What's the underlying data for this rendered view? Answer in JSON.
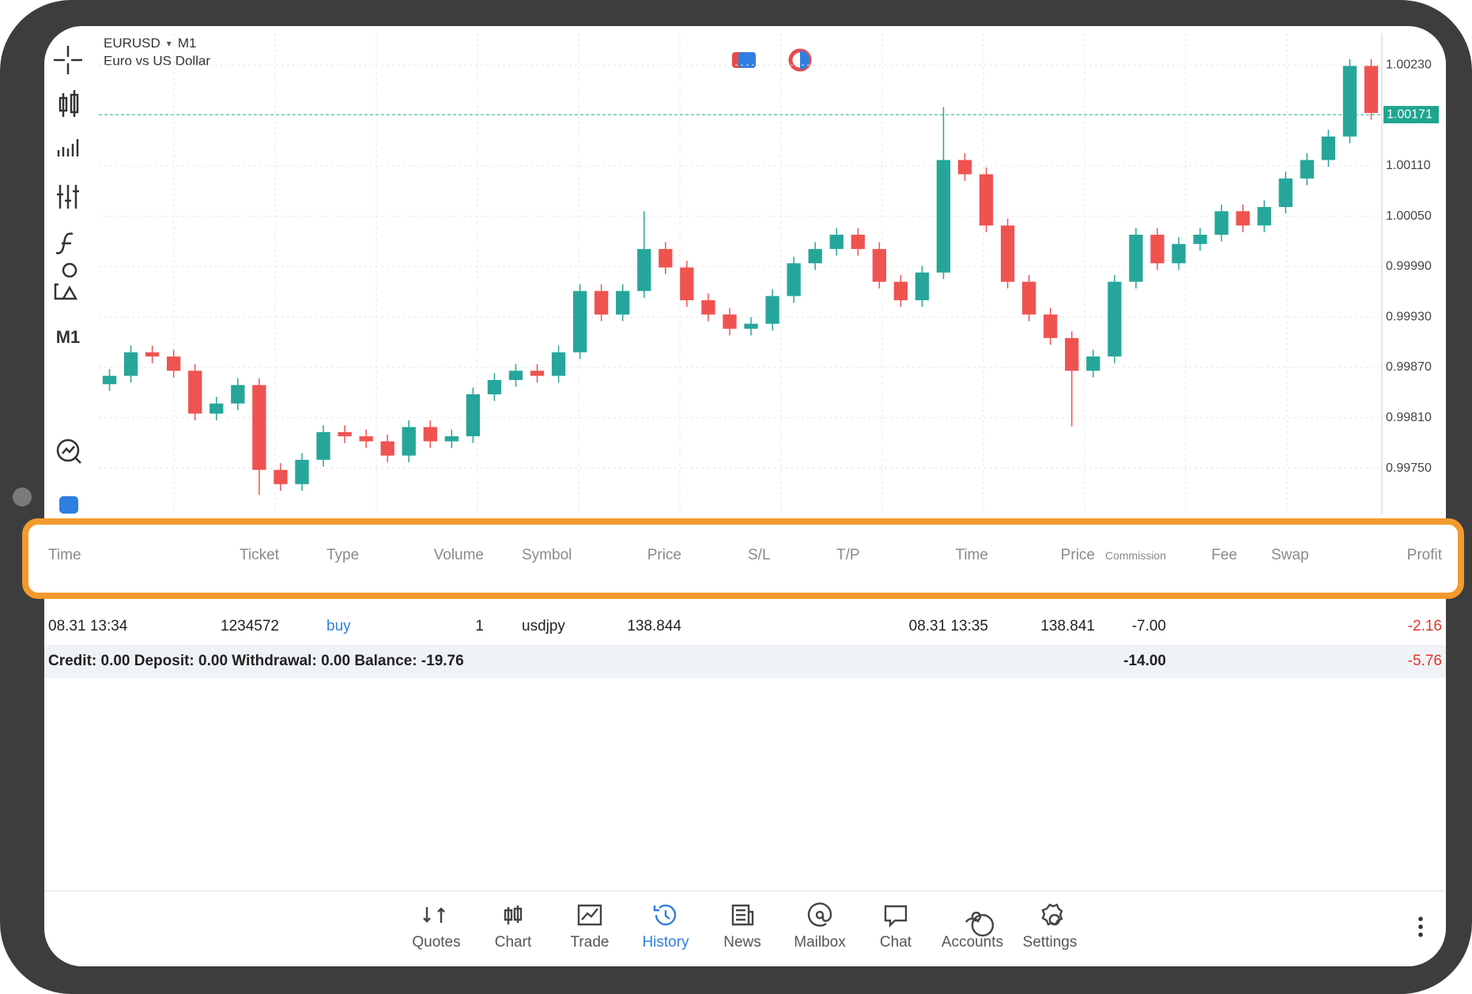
{
  "app": {
    "symbol": "EURUSD",
    "timeframe": "M1",
    "description": "Euro vs US Dollar",
    "toolbar_timeframe": "M1"
  },
  "chart_data": {
    "type": "candlestick",
    "open": [
      0.9985,
      0.9986,
      0.99888,
      0.99883,
      0.99866,
      0.99815,
      0.99827,
      0.99849,
      0.99748,
      0.99731,
      0.9976,
      0.99793,
      0.99788,
      0.99782,
      0.99765,
      0.99799,
      0.99782,
      0.99788,
      0.99838,
      0.99855,
      0.99866,
      0.9986,
      0.99888,
      0.99961,
      0.99933,
      0.99961,
      1.00011,
      0.99989,
      0.9995,
      0.99933,
      0.99916,
      0.99922,
      0.99955,
      0.99994,
      1.00011,
      1.00028,
      1.00011,
      0.99972,
      0.9995,
      0.99983,
      1.00117,
      1.001,
      1.00039,
      0.99972,
      0.99933,
      0.99905,
      0.99866,
      0.99883,
      0.99972,
      1.00028,
      0.99994,
      1.00017,
      1.00028,
      1.00056,
      1.00039,
      1.00061,
      1.00095,
      1.00117,
      1.00145,
      1.00229
    ],
    "high": [
      0.99868,
      0.99896,
      0.99896,
      0.99891,
      0.99874,
      0.99835,
      0.99857,
      0.99857,
      0.99756,
      0.99768,
      0.99801,
      0.99801,
      0.99796,
      0.9979,
      0.99807,
      0.99807,
      0.99796,
      0.99846,
      0.99863,
      0.99874,
      0.99874,
      0.99896,
      0.99969,
      0.99969,
      0.99969,
      1.00056,
      1.00019,
      0.99997,
      0.99958,
      0.99941,
      0.9993,
      0.99963,
      1.00002,
      1.00019,
      1.00036,
      1.00036,
      1.00019,
      0.9998,
      0.99991,
      1.0018,
      1.00125,
      1.00108,
      1.00047,
      0.9998,
      0.99941,
      0.99913,
      0.99891,
      0.9998,
      1.00036,
      1.00036,
      1.00025,
      1.00036,
      1.00064,
      1.00064,
      1.00069,
      1.00103,
      1.00125,
      1.00153,
      1.00237,
      1.00237
    ],
    "low": [
      0.99842,
      0.99852,
      0.99875,
      0.99858,
      0.99807,
      0.99807,
      0.99819,
      0.99718,
      0.99723,
      0.99723,
      0.99752,
      0.9978,
      0.99774,
      0.99757,
      0.99757,
      0.99774,
      0.99774,
      0.9978,
      0.9983,
      0.99847,
      0.99852,
      0.99852,
      0.9988,
      0.99925,
      0.99925,
      0.99953,
      0.99981,
      0.99942,
      0.99925,
      0.99908,
      0.99908,
      0.99914,
      0.99947,
      0.99986,
      1.00003,
      1.00003,
      0.99964,
      0.99942,
      0.99942,
      0.99975,
      1.00092,
      1.00031,
      0.99964,
      0.99925,
      0.99897,
      0.998,
      0.99858,
      0.99875,
      0.99964,
      0.99986,
      0.99986,
      1.00009,
      1.0002,
      1.00031,
      1.00031,
      1.00053,
      1.00087,
      1.00109,
      1.00137,
      1.00165
    ],
    "close": [
      0.9986,
      0.99888,
      0.99883,
      0.99866,
      0.99815,
      0.99827,
      0.99849,
      0.99748,
      0.99731,
      0.9976,
      0.99793,
      0.99788,
      0.99782,
      0.99765,
      0.99799,
      0.99782,
      0.99788,
      0.99838,
      0.99855,
      0.99866,
      0.9986,
      0.99888,
      0.99961,
      0.99933,
      0.99961,
      1.00011,
      0.99989,
      0.9995,
      0.99933,
      0.99916,
      0.99922,
      0.99955,
      0.99994,
      1.00011,
      1.00028,
      1.00011,
      0.99972,
      0.9995,
      0.99983,
      1.00117,
      1.001,
      1.00039,
      0.99972,
      0.99933,
      0.99905,
      0.99866,
      0.99883,
      0.99972,
      1.00028,
      0.99994,
      1.00017,
      1.00028,
      1.00056,
      1.00039,
      1.00061,
      1.00095,
      1.00117,
      1.00145,
      1.00229,
      1.00173
    ],
    "up_color": "#26a69a",
    "down_color": "#ef5350",
    "ylim": [
      0.99695,
      1.00268
    ],
    "yticks": [
      {
        "value": 0.9975,
        "label": "0.99750"
      },
      {
        "value": 0.9981,
        "label": "0.99810"
      },
      {
        "value": 0.9987,
        "label": "0.99870"
      },
      {
        "value": 0.9993,
        "label": "0.99930"
      },
      {
        "value": 0.9999,
        "label": "0.99990"
      },
      {
        "value": 1.0005,
        "label": "1.00050"
      },
      {
        "value": 1.0011,
        "label": "1.00110"
      },
      {
        "value": 1.0023,
        "label": "1.00230"
      }
    ],
    "current_price": 1.00171,
    "current_color": "#1fa58f",
    "grid": true
  },
  "table": {
    "headers": [
      "Time",
      "Ticket",
      "Type",
      "Volume",
      "Symbol",
      "Price",
      "S/L",
      "T/P",
      "Time",
      "Price",
      "Commission",
      "Fee",
      "Swap",
      "Profit"
    ],
    "rows": [
      [
        "08.31 13:34",
        "1234572",
        "buy",
        "1",
        "usdjpy",
        "138.844",
        null,
        null,
        "08.31 13:35",
        "138.841",
        "-7.00",
        null,
        null,
        "-2.16"
      ]
    ],
    "summary": {
      "text": "Credit: 0.00 Deposit: 0.00 Withdrawal: 0.00 Balance: -19.76",
      "commission": "-14.00",
      "profit": "-5.76"
    }
  },
  "nav": {
    "items": [
      "Quotes",
      "Chart",
      "Trade",
      "History",
      "News",
      "Mailbox",
      "Chat",
      "Accounts",
      "Settings"
    ],
    "active": 3
  }
}
